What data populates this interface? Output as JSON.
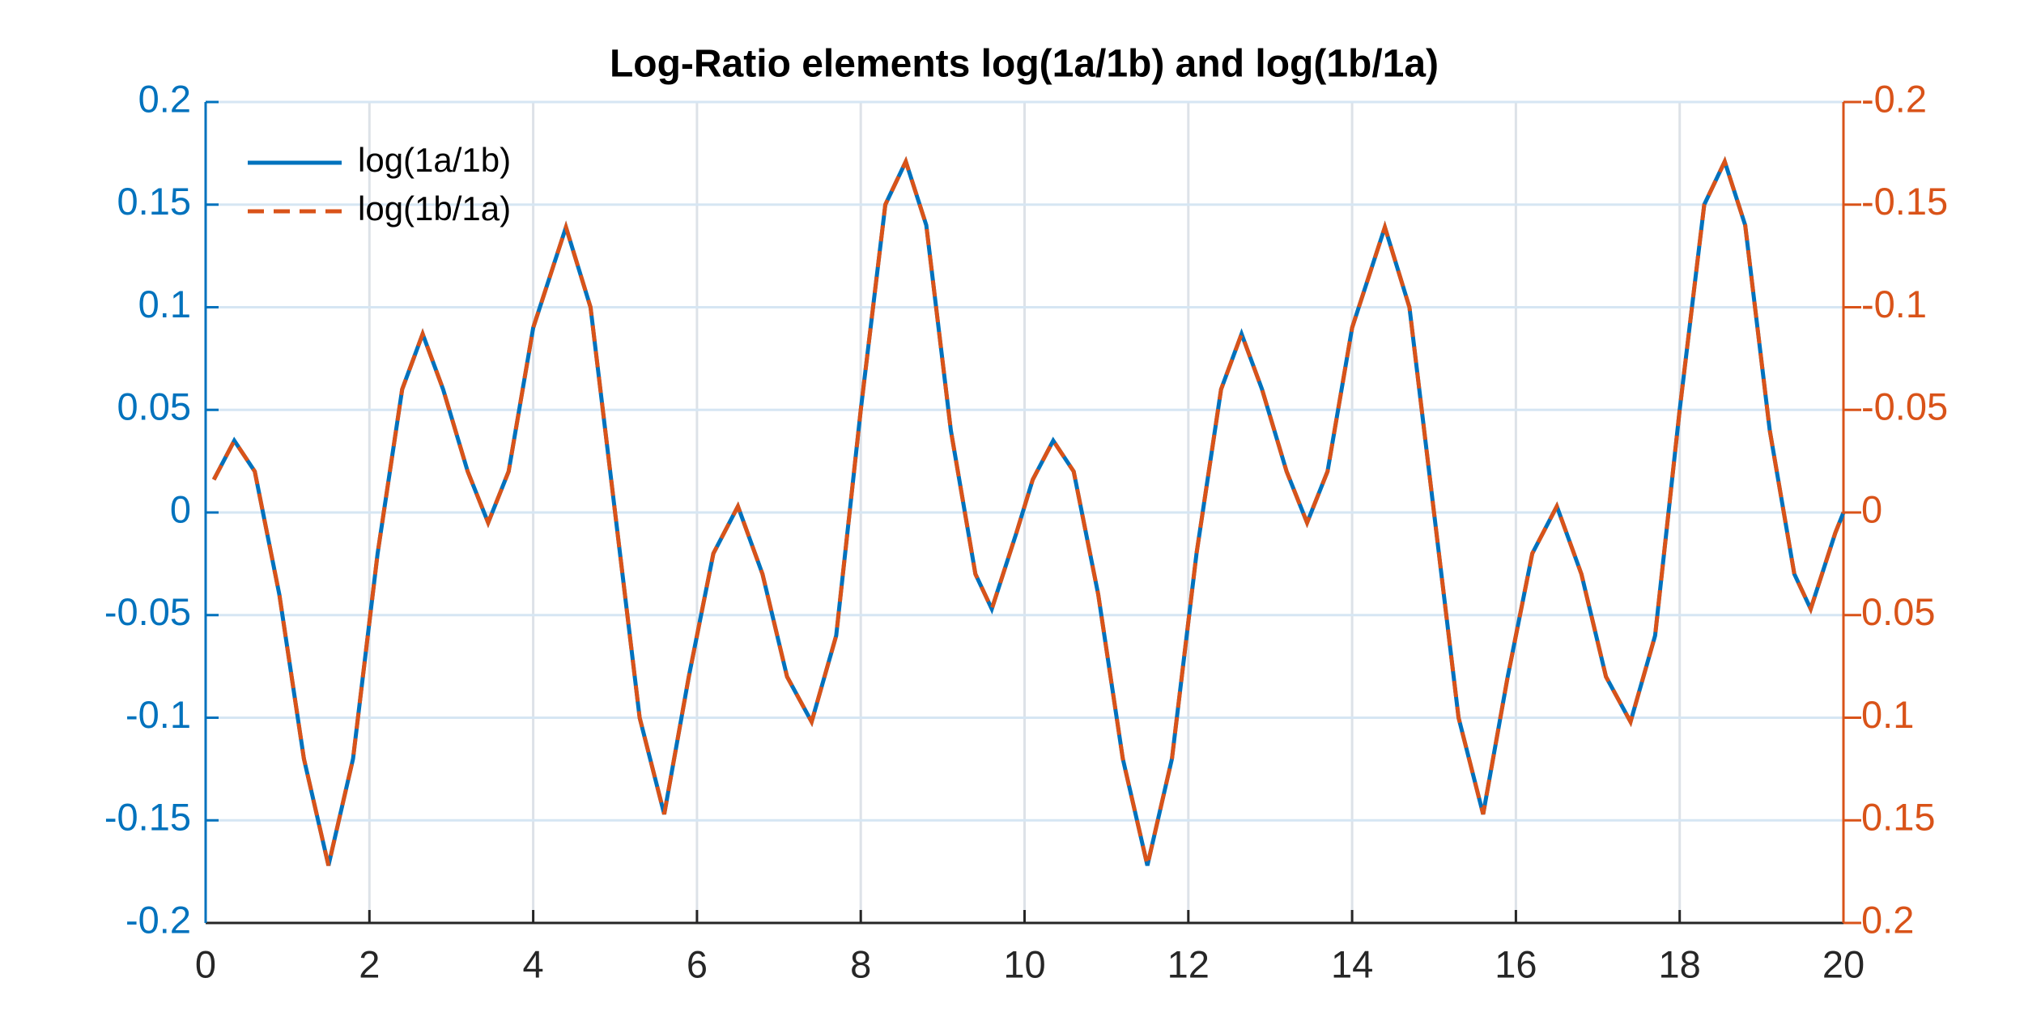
{
  "chart_data": {
    "type": "line",
    "title": "Log-Ratio elements log(1a/1b) and log(1b/1a)",
    "x": [
      0.1,
      0.35,
      0.6,
      0.9,
      1.2,
      1.5,
      1.8,
      2.1,
      2.4,
      2.65,
      2.9,
      3.2,
      3.45,
      3.7,
      4.0,
      4.4,
      4.7,
      5.0,
      5.3,
      5.6,
      5.9,
      6.2,
      6.5,
      6.8,
      7.1,
      7.4,
      7.7,
      8.0,
      8.3,
      8.55,
      8.8,
      9.1,
      9.4,
      9.6,
      9.9,
      10.1,
      10.35,
      10.6,
      10.9,
      11.2,
      11.5,
      11.8,
      12.1,
      12.4,
      12.65,
      12.9,
      13.2,
      13.45,
      13.7,
      14.0,
      14.4,
      14.7,
      15.0,
      15.3,
      15.6,
      15.9,
      16.2,
      16.5,
      16.8,
      17.1,
      17.4,
      17.7,
      18.0,
      18.3,
      18.55,
      18.8,
      19.1,
      19.4,
      19.6,
      19.9,
      20.0
    ],
    "series": [
      {
        "name": "log(1a/1b)",
        "color": "#0072bd",
        "dash": false,
        "values": [
          0.016,
          0.035,
          0.02,
          -0.04,
          -0.12,
          -0.172,
          -0.12,
          -0.02,
          0.06,
          0.087,
          0.06,
          0.02,
          -0.005,
          0.02,
          0.09,
          0.139,
          0.1,
          0,
          -0.1,
          -0.147,
          -0.08,
          -0.02,
          0.003,
          -0.03,
          -0.08,
          -0.102,
          -0.06,
          0.05,
          0.15,
          0.171,
          0.14,
          0.04,
          -0.03,
          -0.047,
          -0.01,
          0.016,
          0.035,
          0.02,
          -0.04,
          -0.12,
          -0.172,
          -0.12,
          -0.02,
          0.06,
          0.087,
          0.06,
          0.02,
          -0.005,
          0.02,
          0.09,
          0.139,
          0.1,
          0,
          -0.1,
          -0.147,
          -0.08,
          -0.02,
          0.003,
          -0.03,
          -0.08,
          -0.102,
          -0.06,
          0.05,
          0.15,
          0.171,
          0.14,
          0.04,
          -0.03,
          -0.047,
          -0.01,
          0
        ]
      },
      {
        "name": "log(1b/1a)",
        "color": "#d95319",
        "dash": true,
        "axis": "y2",
        "values": [
          -0.016,
          -0.035,
          -0.02,
          0.04,
          0.12,
          0.172,
          0.12,
          0.02,
          -0.06,
          -0.087,
          -0.06,
          -0.02,
          0.005,
          -0.02,
          -0.09,
          -0.139,
          -0.1,
          0,
          0.1,
          0.147,
          0.08,
          0.02,
          -0.003,
          0.03,
          0.08,
          0.102,
          0.06,
          -0.05,
          -0.15,
          -0.171,
          -0.14,
          -0.04,
          0.03,
          0.047,
          0.01,
          -0.016,
          -0.035,
          -0.02,
          0.04,
          0.12,
          0.172,
          0.12,
          0.02,
          -0.06,
          -0.087,
          -0.06,
          -0.02,
          0.005,
          -0.02,
          -0.09,
          -0.139,
          -0.1,
          0,
          0.1,
          0.147,
          0.08,
          0.02,
          -0.003,
          0.03,
          0.08,
          0.102,
          0.06,
          -0.05,
          -0.15,
          -0.171,
          -0.14,
          -0.04,
          0.03,
          0.047,
          0.01,
          0
        ]
      }
    ],
    "xlim": [
      0,
      20
    ],
    "xticks": [
      0,
      2,
      4,
      6,
      8,
      10,
      12,
      14,
      16,
      18,
      20
    ],
    "ylim": [
      -0.2,
      0.2
    ],
    "yticks": [
      -0.2,
      -0.15,
      -0.1,
      -0.05,
      0,
      0.05,
      0.1,
      0.15,
      0.2
    ],
    "y2lim": [
      -0.2,
      0.2
    ],
    "y2ticks": [
      -0.2,
      -0.15,
      -0.1,
      -0.05,
      0,
      0.05,
      0.1,
      0.15,
      0.2
    ],
    "y2_reversed": true,
    "grid": true,
    "legend": "upper-left"
  }
}
